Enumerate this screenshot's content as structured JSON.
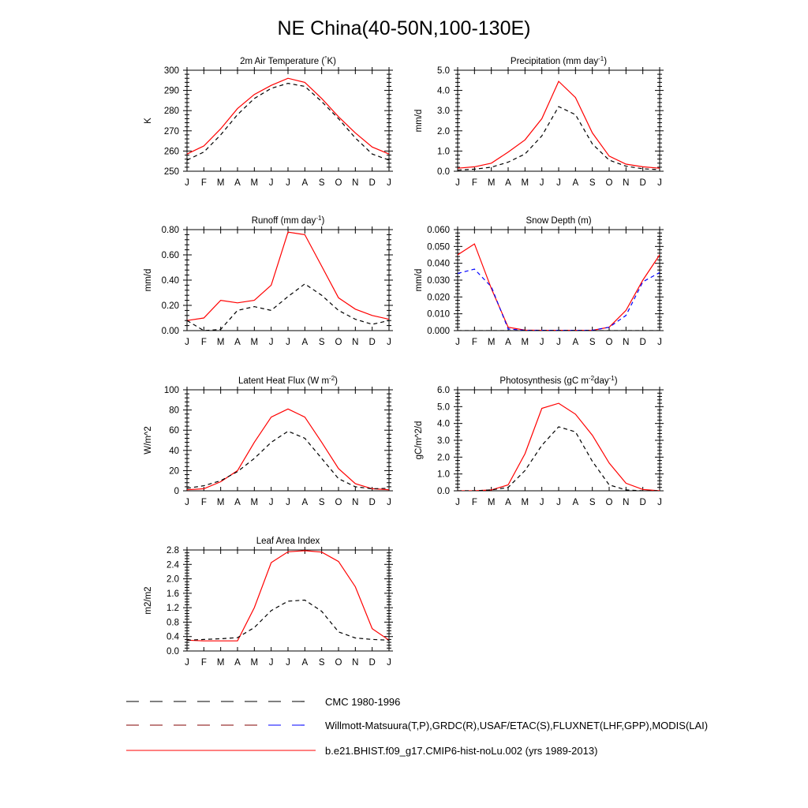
{
  "page_title": "NE China(40-50N,100-130E)",
  "months": [
    "J",
    "F",
    "M",
    "A",
    "M",
    "J",
    "J",
    "A",
    "S",
    "O",
    "N",
    "D",
    "J"
  ],
  "colors": {
    "model": "#ff0000",
    "obs": "#000000",
    "obs_alt": "#0000ff",
    "axis": "#000000"
  },
  "legend": [
    {
      "label": "CMC 1980-1996",
      "style": "dashed-black"
    },
    {
      "label": "Willmott-Matsuura(T,P),GRDC(R),USAF/ETAC(S),FLUXNET(LHF,GPP),MODIS(LAI)",
      "style": "dashed-black-blue"
    },
    {
      "label": "b.e21.BHIST.f09_g17.CMIP6-hist-noLu.002 (yrs 1989-2013)",
      "style": "solid-red"
    }
  ],
  "chart_data": [
    {
      "id": "temp",
      "type": "line",
      "title": "2m Air Temperature (°K)",
      "ylabel": "K",
      "ylim": [
        250,
        300
      ],
      "yticks": [
        "250",
        "260",
        "270",
        "280",
        "290",
        "300"
      ],
      "x": [
        "J",
        "F",
        "M",
        "A",
        "M",
        "J",
        "J",
        "A",
        "S",
        "O",
        "N",
        "D",
        "J"
      ],
      "series": [
        {
          "role": "model",
          "values": [
            258.5,
            262.5,
            271,
            281,
            288,
            292.5,
            296,
            294,
            286,
            277,
            269,
            262,
            258.5
          ]
        },
        {
          "role": "obs",
          "values": [
            255.5,
            259.5,
            268,
            278,
            286,
            291,
            293.5,
            292,
            284.5,
            276,
            266.5,
            258.5,
            255.5
          ]
        }
      ]
    },
    {
      "id": "precip",
      "type": "line",
      "title": "Precipitation (mm day-1)",
      "ylabel": "mm/d",
      "ylim": [
        0,
        5
      ],
      "yticks": [
        "0.0",
        "1.0",
        "2.0",
        "3.0",
        "4.0",
        "5.0"
      ],
      "x": [
        "J",
        "F",
        "M",
        "A",
        "M",
        "J",
        "J",
        "A",
        "S",
        "O",
        "N",
        "D",
        "J"
      ],
      "series": [
        {
          "role": "model",
          "values": [
            0.15,
            0.22,
            0.4,
            0.95,
            1.55,
            2.6,
            4.45,
            3.65,
            1.9,
            0.75,
            0.35,
            0.22,
            0.15
          ]
        },
        {
          "role": "obs",
          "values": [
            0.05,
            0.1,
            0.2,
            0.45,
            0.85,
            1.75,
            3.2,
            2.8,
            1.35,
            0.55,
            0.25,
            0.12,
            0.08
          ]
        }
      ]
    },
    {
      "id": "runoff",
      "type": "line",
      "title": "Runoff (mm day-1)",
      "ylabel": "mm/d",
      "ylim": [
        0,
        0.8
      ],
      "yticks": [
        "0.00",
        "0.20",
        "0.40",
        "0.60",
        "0.80"
      ],
      "x": [
        "J",
        "F",
        "M",
        "A",
        "M",
        "J",
        "J",
        "A",
        "S",
        "O",
        "N",
        "D",
        "J"
      ],
      "series": [
        {
          "role": "model",
          "values": [
            0.08,
            0.1,
            0.24,
            0.22,
            0.24,
            0.36,
            0.78,
            0.76,
            0.51,
            0.26,
            0.17,
            0.12,
            0.09
          ]
        },
        {
          "role": "obs",
          "values": [
            0.08,
            0.0,
            0.01,
            0.16,
            0.19,
            0.16,
            0.27,
            0.37,
            0.28,
            0.16,
            0.09,
            0.05,
            0.08
          ]
        }
      ]
    },
    {
      "id": "snow",
      "type": "line",
      "title": "Snow Depth (m)",
      "ylabel": "mm/d",
      "ylim": [
        0,
        0.06
      ],
      "yticks": [
        "0.000",
        "0.010",
        "0.020",
        "0.030",
        "0.040",
        "0.050",
        "0.060"
      ],
      "x": [
        "J",
        "F",
        "M",
        "A",
        "M",
        "J",
        "J",
        "A",
        "S",
        "O",
        "N",
        "D",
        "J"
      ],
      "series": [
        {
          "role": "model",
          "values": [
            0.045,
            0.0515,
            0.025,
            0.002,
            0.0003,
            0.0002,
            0.0002,
            0.0002,
            0.0002,
            0.002,
            0.012,
            0.03,
            0.045
          ]
        },
        {
          "role": "obs_alt",
          "values": [
            0.034,
            0.0365,
            0.026,
            0.001,
            0.0002,
            0.0002,
            0.0002,
            0.0002,
            0.0002,
            0.002,
            0.009,
            0.029,
            0.0345
          ]
        },
        {
          "role": "obs",
          "values": [
            0,
            0,
            0,
            0,
            0,
            0,
            0,
            0,
            0,
            0,
            0,
            0,
            0
          ]
        }
      ]
    },
    {
      "id": "lhf",
      "type": "line",
      "title": "Latent Heat Flux (W m-2)",
      "ylabel": "W/m^2",
      "ylim": [
        0,
        100
      ],
      "yticks": [
        "0",
        "20",
        "40",
        "60",
        "80",
        "100"
      ],
      "x": [
        "J",
        "F",
        "M",
        "A",
        "M",
        "J",
        "J",
        "A",
        "S",
        "O",
        "N",
        "D",
        "J"
      ],
      "series": [
        {
          "role": "model",
          "values": [
            1,
            2,
            9,
            20,
            48,
            73,
            81,
            73,
            48,
            22,
            7,
            2,
            1
          ]
        },
        {
          "role": "obs",
          "values": [
            2.5,
            5,
            10,
            19,
            32,
            48,
            59,
            52,
            32,
            12,
            4,
            2,
            2.5
          ]
        }
      ]
    },
    {
      "id": "gpp",
      "type": "line",
      "title": "Photosynthesis (gC m-2day-1)",
      "ylabel": "gC/m^2/d",
      "ylim": [
        0,
        6
      ],
      "yticks": [
        "0.0",
        "1.0",
        "2.0",
        "3.0",
        "4.0",
        "5.0",
        "6.0"
      ],
      "x": [
        "J",
        "F",
        "M",
        "A",
        "M",
        "J",
        "J",
        "A",
        "S",
        "O",
        "N",
        "D",
        "J"
      ],
      "series": [
        {
          "role": "model",
          "values": [
            0,
            0,
            0.05,
            0.35,
            2.2,
            4.9,
            5.2,
            4.55,
            3.3,
            1.65,
            0.45,
            0.08,
            0.0
          ]
        },
        {
          "role": "obs",
          "values": [
            0,
            0,
            0.05,
            0.2,
            1.2,
            2.7,
            3.8,
            3.5,
            1.75,
            0.35,
            0.05,
            0,
            0
          ]
        }
      ]
    },
    {
      "id": "lai",
      "type": "line",
      "title": "Leaf Area Index",
      "ylabel": "m2/m2",
      "ylim": [
        0,
        2.8
      ],
      "yticks": [
        "0.0",
        "0.4",
        "0.8",
        "1.2",
        "1.6",
        "2.0",
        "2.4",
        "2.8"
      ],
      "x": [
        "J",
        "F",
        "M",
        "A",
        "M",
        "J",
        "J",
        "A",
        "S",
        "O",
        "N",
        "D",
        "J"
      ],
      "series": [
        {
          "role": "model",
          "values": [
            0.3,
            0.28,
            0.28,
            0.28,
            1.2,
            2.45,
            2.75,
            2.78,
            2.74,
            2.48,
            1.78,
            0.62,
            0.3
          ]
        },
        {
          "role": "obs",
          "values": [
            0.3,
            0.32,
            0.34,
            0.37,
            0.65,
            1.12,
            1.38,
            1.41,
            1.1,
            0.53,
            0.36,
            0.32,
            0.3
          ]
        }
      ]
    }
  ]
}
